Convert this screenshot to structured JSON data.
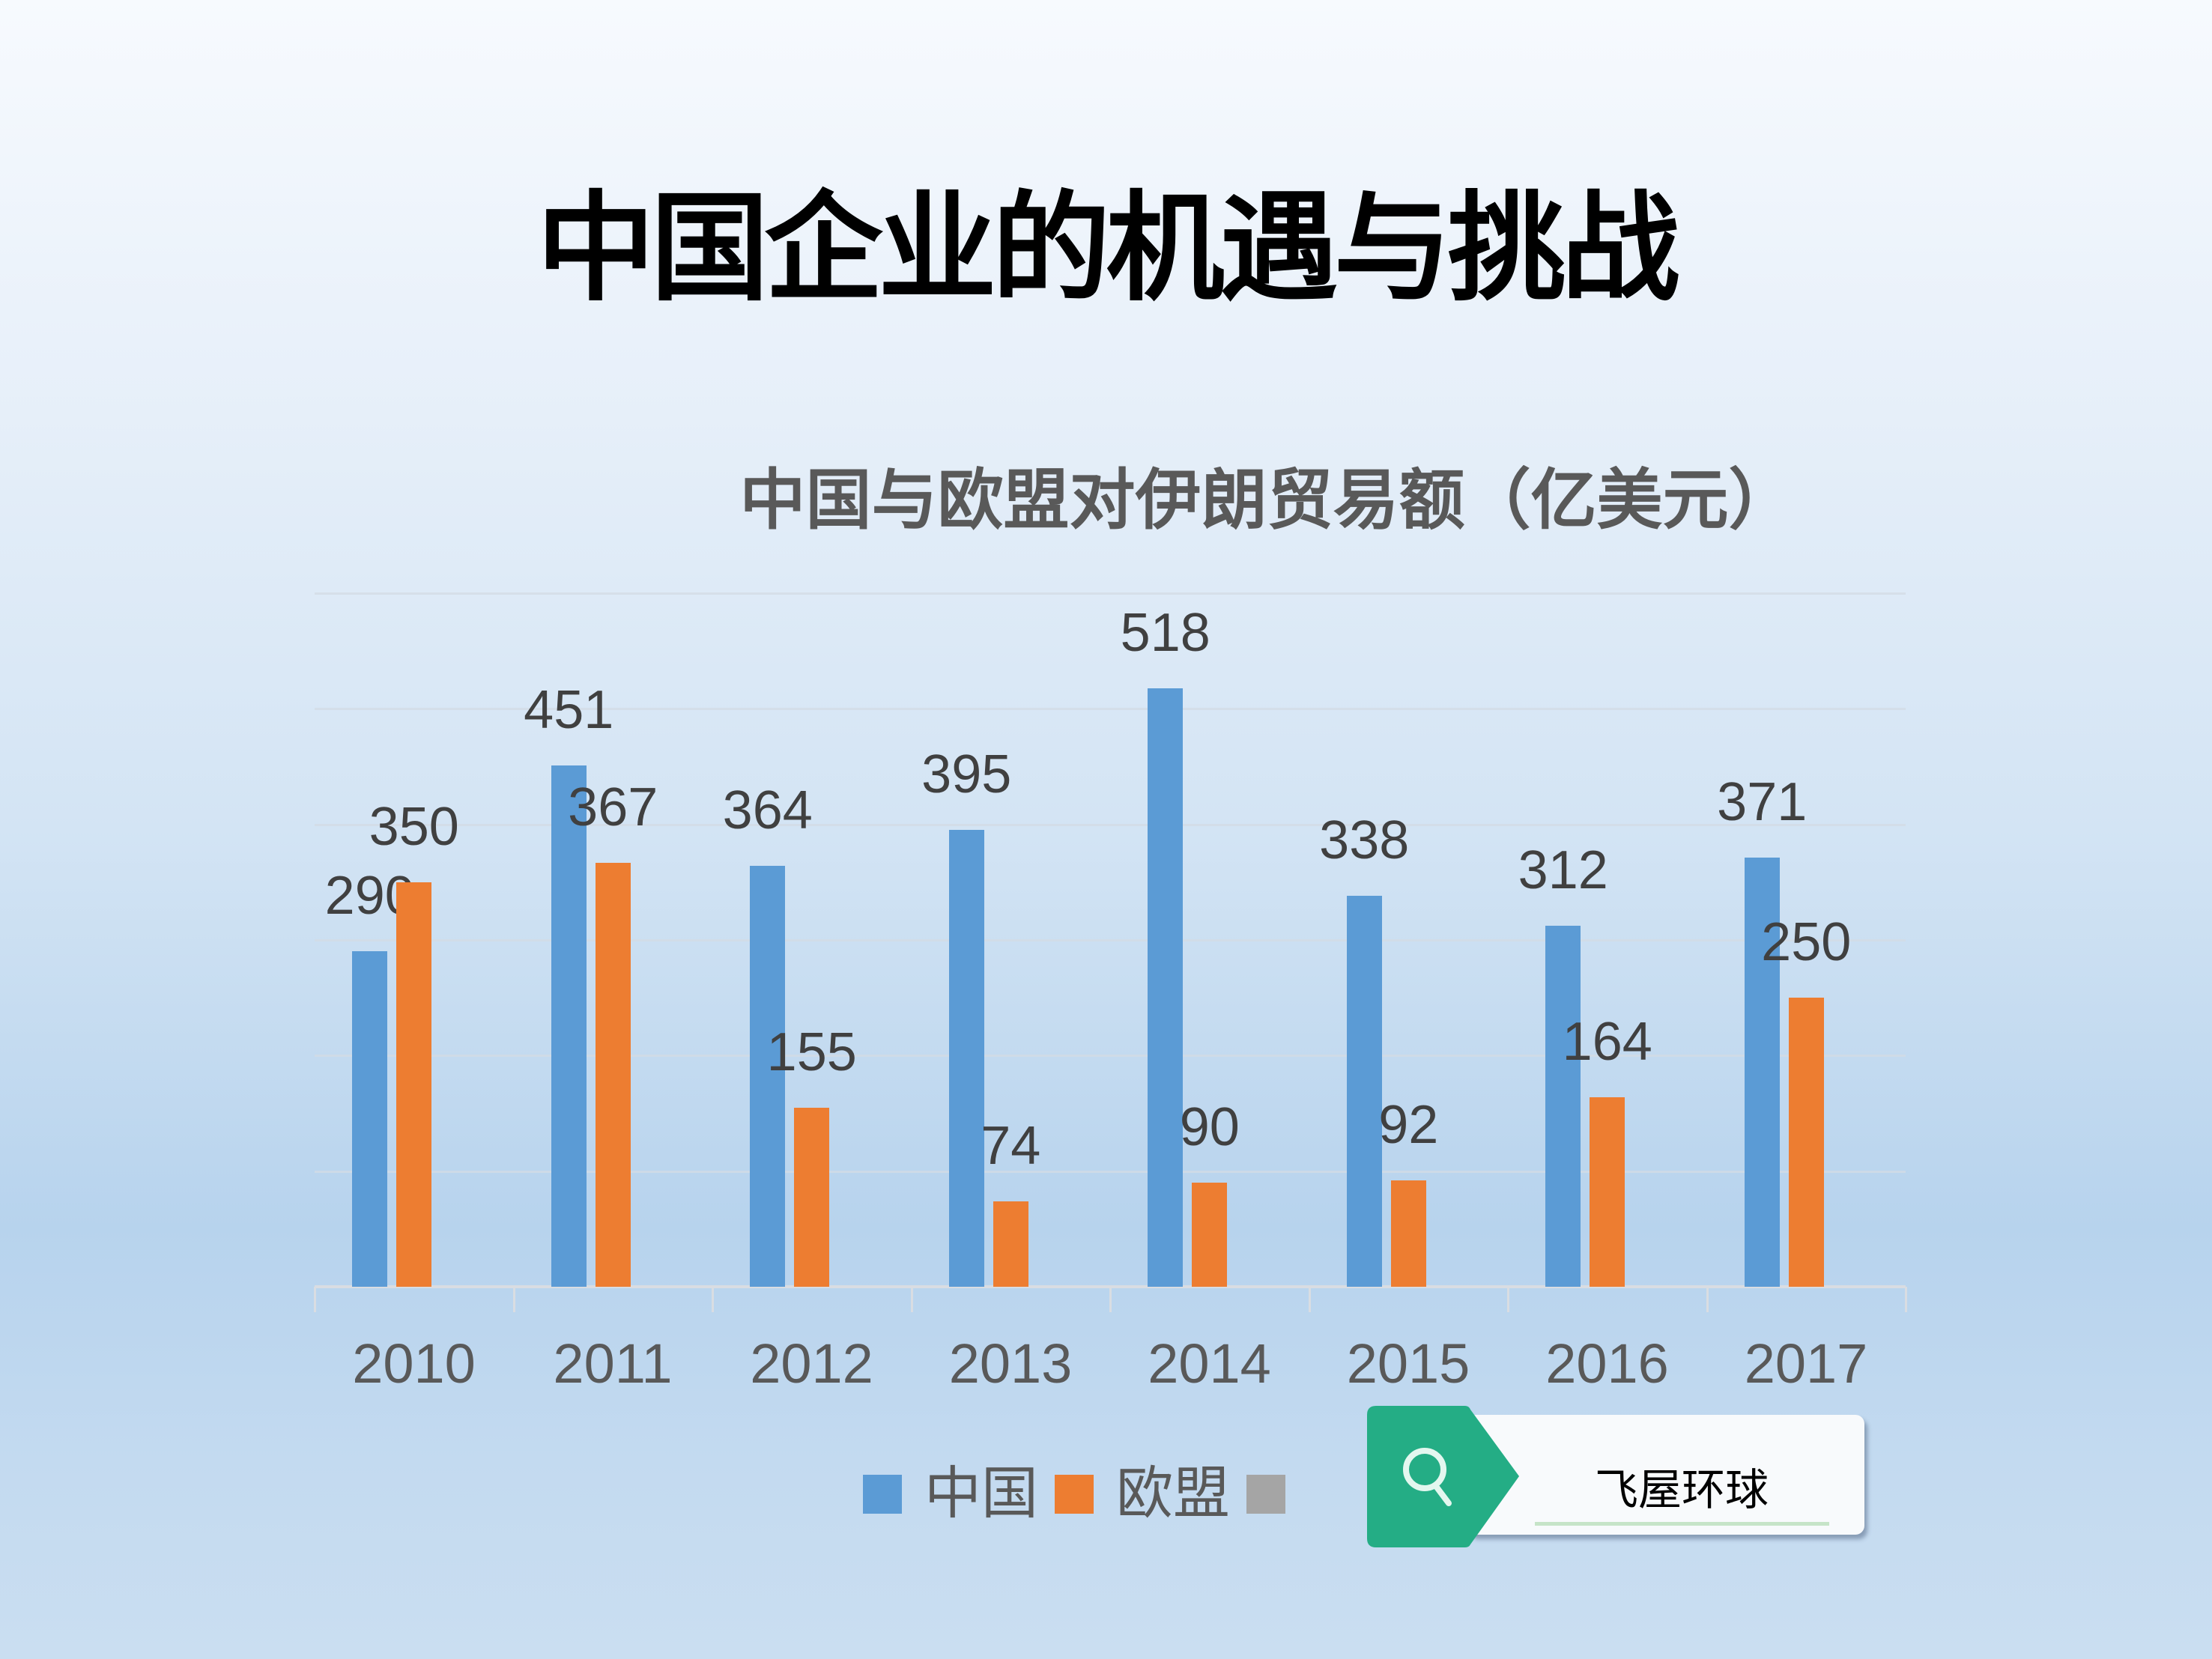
{
  "slide": {
    "title": "中国企业的机遇与挑战"
  },
  "chart_data": {
    "type": "bar",
    "title": "中国与欧盟对伊朗贸易额（亿美元）",
    "xlabel": "",
    "ylabel": "",
    "categories": [
      "2010",
      "2011",
      "2012",
      "2013",
      "2014",
      "2015",
      "2016",
      "2017"
    ],
    "series": [
      {
        "name": "中国",
        "color": "#5b9bd5",
        "values": [
          290,
          451,
          364,
          395,
          518,
          338,
          312,
          371
        ]
      },
      {
        "name": "欧盟",
        "color": "#ed7d31",
        "values": [
          350,
          367,
          155,
          74,
          90,
          92,
          164,
          250
        ]
      },
      {
        "name": "",
        "color": "#a5a5a5",
        "values": []
      }
    ],
    "ylim": [
      0,
      600
    ],
    "gridlines": [
      0,
      100,
      200,
      300,
      400,
      500,
      600
    ],
    "grid": true,
    "y_axis_labels_shown": false,
    "data_labels": true,
    "legend_position": "bottom"
  },
  "legend": {
    "items": [
      {
        "label": "中国",
        "color": "#5b9bd5"
      },
      {
        "label": "欧盟",
        "color": "#ed7d31"
      },
      {
        "label": "",
        "color": "#a5a5a5"
      }
    ]
  },
  "search_widget": {
    "icon": "search-icon",
    "text": "飞屋环球",
    "tag_color": "#24ad85"
  }
}
